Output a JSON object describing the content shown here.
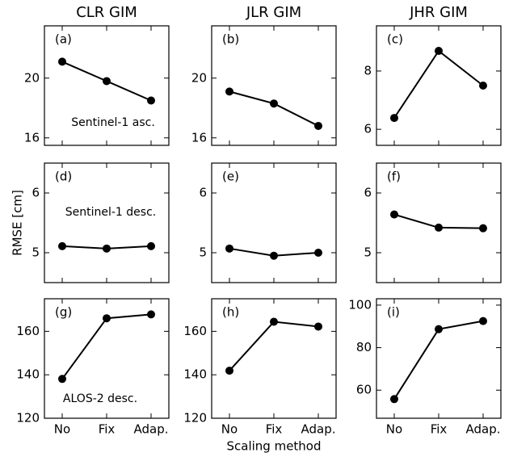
{
  "chart_data": [
    {
      "type": "line",
      "title": "CLR GIM",
      "panel_label": "(a)",
      "annotation": "Sentinel-1 asc.",
      "values": [
        21.1,
        19.8,
        18.5
      ],
      "color": "#000000",
      "ylim": [
        15.5,
        23.5
      ],
      "yticks": [
        16,
        20
      ]
    },
    {
      "type": "line",
      "title": "JLR GIM",
      "panel_label": "(b)",
      "values": [
        19.1,
        18.3,
        16.8
      ],
      "color": "#000000",
      "ylim": [
        15.5,
        23.5
      ],
      "yticks": [
        16,
        20
      ]
    },
    {
      "type": "line",
      "title": "JHR GIM",
      "panel_label": "(c)",
      "values": [
        6.39,
        8.69,
        7.5
      ],
      "color": "#000000",
      "ylim": [
        5.45,
        9.55
      ],
      "yticks": [
        6,
        8
      ]
    },
    {
      "type": "line",
      "ylabel": "RMSE [cm]",
      "panel_label": "(d)",
      "annotation": "Sentinel-1 desc.",
      "values": [
        5.11,
        5.07,
        5.11
      ],
      "color": "#000000",
      "ylim": [
        4.5,
        6.5
      ],
      "yticks": [
        5,
        6
      ]
    },
    {
      "type": "line",
      "panel_label": "(e)",
      "values": [
        5.07,
        4.95,
        5.0
      ],
      "color": "#000000",
      "ylim": [
        4.5,
        6.5
      ],
      "yticks": [
        5,
        6
      ]
    },
    {
      "type": "line",
      "panel_label": "(f)",
      "values": [
        5.64,
        5.42,
        5.41
      ],
      "color": "#000000",
      "ylim": [
        4.5,
        6.5
      ],
      "yticks": [
        5,
        6
      ]
    },
    {
      "type": "line",
      "panel_label": "(g)",
      "annotation": "ALOS-2 desc.",
      "categories": [
        "No",
        "Fix",
        "Adap."
      ],
      "values": [
        138.1,
        166,
        167.8
      ],
      "color": "#000000",
      "ylim": [
        120,
        175
      ],
      "yticks": [
        120,
        140,
        160
      ]
    },
    {
      "type": "line",
      "xlabel": "Scaling method",
      "panel_label": "(h)",
      "categories": [
        "No",
        "Fix",
        "Adap."
      ],
      "values": [
        141.9,
        164.4,
        162.2
      ],
      "color": "#000000",
      "ylim": [
        120,
        175
      ],
      "yticks": [
        120,
        140,
        160
      ]
    },
    {
      "type": "line",
      "panel_label": "(i)",
      "categories": [
        "No",
        "Fix",
        "Adap."
      ],
      "values": [
        55.8,
        88.7,
        92.5
      ],
      "color": "#000000",
      "ylim": [
        46.8,
        103
      ],
      "yticks": [
        60,
        80,
        100
      ]
    }
  ]
}
